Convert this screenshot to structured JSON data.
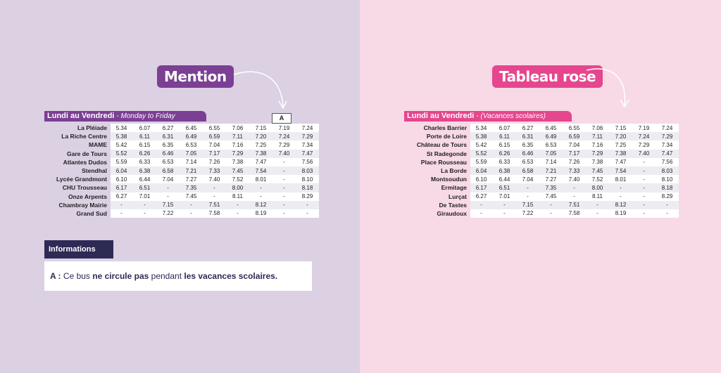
{
  "left": {
    "badge": "Mention",
    "table_title": "Lundi au Vendredi",
    "table_subtitle": "- Monday to Friday",
    "flag": "A",
    "rows": [
      {
        "stop": "La Pléiade",
        "times": [
          "5.34",
          "6.07",
          "6.27",
          "6.45",
          "6.55",
          "7.06",
          "7.15",
          "7.19",
          "7.24"
        ]
      },
      {
        "stop": "La Riche Centre",
        "times": [
          "5.38",
          "6.11",
          "6.31",
          "6.49",
          "6.59",
          "7.11",
          "7.20",
          "7.24",
          "7.29"
        ]
      },
      {
        "stop": "MAME",
        "times": [
          "5.42",
          "6.15",
          "6.35",
          "6.53",
          "7.04",
          "7.16",
          "7.25",
          "7.29",
          "7.34"
        ]
      },
      {
        "stop": "Gare de Tours",
        "times": [
          "5.52",
          "6.26",
          "6.46",
          "7.05",
          "7.17",
          "7.29",
          "7.38",
          "7.40",
          "7.47"
        ]
      },
      {
        "stop": "Atlantes Dudos",
        "times": [
          "5.59",
          "6.33",
          "6.53",
          "7.14",
          "7.26",
          "7.38",
          "7.47",
          "-",
          "7.56"
        ]
      },
      {
        "stop": "Stendhal",
        "times": [
          "6.04",
          "6.38",
          "6.58",
          "7.21",
          "7.33",
          "7.45",
          "7.54",
          "-",
          "8.03"
        ]
      },
      {
        "stop": "Lycée Grandmont",
        "times": [
          "6.10",
          "6.44",
          "7.04",
          "7.27",
          "7.40",
          "7.52",
          "8.01",
          "-",
          "8.10"
        ]
      },
      {
        "stop": "CHU Trousseau",
        "times": [
          "6.17",
          "6.51",
          "-",
          "7.35",
          "-",
          "8.00",
          "-",
          "-",
          "8.18"
        ]
      },
      {
        "stop": "Onze Arpents",
        "times": [
          "6.27",
          "7.01",
          "-",
          "7.45",
          "-",
          "8.11",
          "-",
          "-",
          "8.29"
        ]
      },
      {
        "stop": "Chambray Mairie",
        "times": [
          "-",
          "-",
          "7.15",
          "-",
          "7.51",
          "-",
          "8.12",
          "-",
          "-"
        ]
      },
      {
        "stop": "Grand Sud",
        "times": [
          "-",
          "-",
          "7.22",
          "-",
          "7.58",
          "-",
          "8.19",
          "-",
          "-"
        ]
      }
    ],
    "info": {
      "header": "Informations",
      "prefix": "A :",
      "t1": " Ce bus ",
      "b1": "ne circule pas",
      "t2": " pendant ",
      "b2": "les vacances scolaires."
    }
  },
  "right": {
    "badge": "Tableau rose",
    "table_title": "Lundi au Vendredi",
    "table_subtitle": "- (Vacances scolaires)",
    "rows": [
      {
        "stop": "Charles Barrier",
        "times": [
          "5.34",
          "6.07",
          "6.27",
          "6.45",
          "6.55",
          "7.06",
          "7.15",
          "7.19",
          "7.24"
        ]
      },
      {
        "stop": "Porte de Loire",
        "times": [
          "5.38",
          "6.11",
          "6.31",
          "6.49",
          "6.59",
          "7.11",
          "7.20",
          "7.24",
          "7.29"
        ]
      },
      {
        "stop": "Château de Tours",
        "times": [
          "5.42",
          "6.15",
          "6.35",
          "6.53",
          "7.04",
          "7.16",
          "7.25",
          "7.29",
          "7.34"
        ]
      },
      {
        "stop": "St Radegonde",
        "times": [
          "5.52",
          "6.26",
          "6.46",
          "7.05",
          "7.17",
          "7.29",
          "7.38",
          "7.40",
          "7.47"
        ]
      },
      {
        "stop": "Place Rousseau",
        "times": [
          "5.59",
          "6.33",
          "6.53",
          "7.14",
          "7.26",
          "7.38",
          "7.47",
          "-",
          "7.56"
        ]
      },
      {
        "stop": "La Borde",
        "times": [
          "6.04",
          "6.38",
          "6.58",
          "7.21",
          "7.33",
          "7.45",
          "7.54",
          "-",
          "8.03"
        ]
      },
      {
        "stop": "Montsoudun",
        "times": [
          "6.10",
          "6.44",
          "7.04",
          "7.27",
          "7.40",
          "7.52",
          "8.01",
          "-",
          "8.10"
        ]
      },
      {
        "stop": "Ermitage",
        "times": [
          "6.17",
          "6.51",
          "-",
          "7.35",
          "-",
          "8.00",
          "-",
          "-",
          "8.18"
        ]
      },
      {
        "stop": "Lurçat",
        "times": [
          "6.27",
          "7.01",
          "-",
          "7.45",
          "-",
          "8.11",
          "-",
          "-",
          "8.29"
        ]
      },
      {
        "stop": "De Tastes",
        "times": [
          "-",
          "-",
          "7.15",
          "-",
          "7.51",
          "-",
          "8.12",
          "-",
          "-"
        ]
      },
      {
        "stop": "Giraudoux",
        "times": [
          "-",
          "-",
          "7.22",
          "-",
          "7.58",
          "-",
          "8.19",
          "-",
          "-"
        ]
      }
    ]
  },
  "colors": {
    "purple": "#7b3f93",
    "pink": "#e5468d",
    "navy": "#2d2a55",
    "left_bg": "#dcd0e3",
    "right_bg": "#f8d9e6"
  }
}
